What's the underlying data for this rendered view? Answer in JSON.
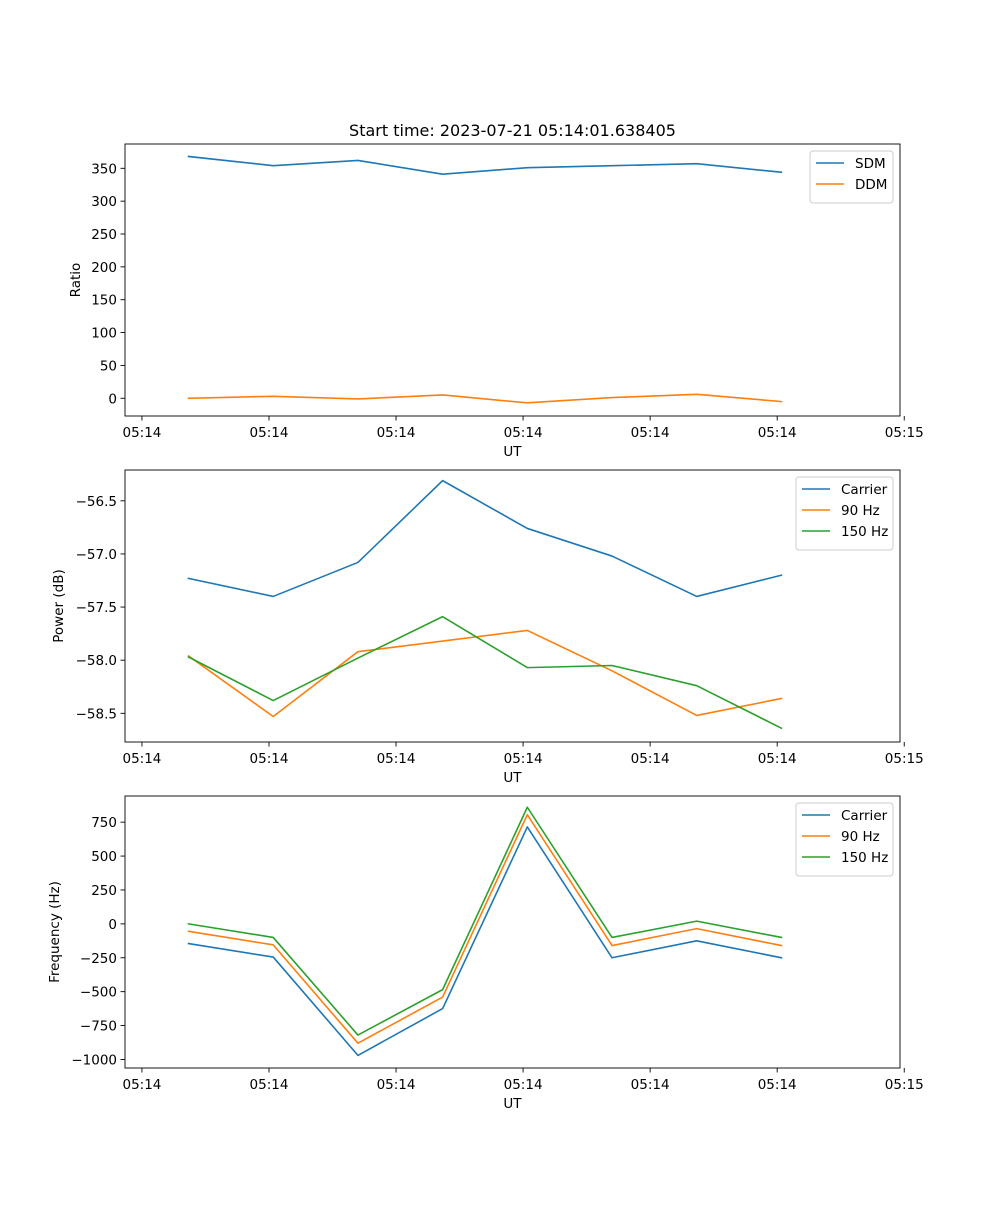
{
  "figure": {
    "title": "Start time: 2023-07-21 05:14:01.638405"
  },
  "chart_data": [
    {
      "type": "line",
      "title": "Start time: 2023-07-21 05:14:01.638405",
      "xlabel": "UT",
      "ylabel": "Ratio",
      "x": [
        0,
        1,
        2,
        3,
        4,
        5,
        6,
        7
      ],
      "xlim": [
        -0.75,
        8.4
      ],
      "x_ticks": [
        -0.55,
        0.95,
        2.45,
        3.95,
        5.45,
        6.95,
        8.45
      ],
      "x_tick_labels": [
        "05:14",
        "05:14",
        "05:14",
        "05:14",
        "05:14",
        "05:14",
        "05:15"
      ],
      "ylim": [
        -27,
        387
      ],
      "y_ticks": [
        0,
        50,
        100,
        150,
        200,
        250,
        300,
        350
      ],
      "y_tick_labels": [
        "0",
        "50",
        "100",
        "150",
        "200",
        "250",
        "300",
        "350"
      ],
      "legend_position": "top-right",
      "grid": false,
      "series": [
        {
          "name": "SDM",
          "color": "#1f77b4",
          "values": [
            368,
            354,
            362,
            341,
            351,
            354,
            357,
            344
          ]
        },
        {
          "name": "DDM",
          "color": "#ff7f0e",
          "values": [
            0,
            3,
            -1,
            5,
            -7,
            1,
            6,
            -5
          ]
        }
      ]
    },
    {
      "type": "line",
      "title": "",
      "xlabel": "UT",
      "ylabel": "Power (dB)",
      "x": [
        0,
        1,
        2,
        3,
        4,
        5,
        6,
        7
      ],
      "xlim": [
        -0.75,
        8.4
      ],
      "x_ticks": [
        -0.55,
        0.95,
        2.45,
        3.95,
        5.45,
        6.95,
        8.45
      ],
      "x_tick_labels": [
        "05:14",
        "05:14",
        "05:14",
        "05:14",
        "05:14",
        "05:14",
        "05:15"
      ],
      "ylim": [
        -58.77,
        -56.21
      ],
      "y_ticks": [
        -58.5,
        -58.0,
        -57.5,
        -57.0,
        -56.5
      ],
      "y_tick_labels": [
        "−58.5",
        "−58.0",
        "−57.5",
        "−57.0",
        "−56.5"
      ],
      "legend_position": "top-right",
      "grid": false,
      "series": [
        {
          "name": "Carrier",
          "color": "#1f77b4",
          "values": [
            -57.23,
            -57.4,
            -57.08,
            -56.31,
            -56.76,
            -57.02,
            -57.4,
            -57.2
          ]
        },
        {
          "name": "90 Hz",
          "color": "#ff7f0e",
          "values": [
            -57.96,
            -58.53,
            -57.92,
            -57.82,
            -57.72,
            -58.1,
            -58.52,
            -58.36
          ]
        },
        {
          "name": "150 Hz",
          "color": "#2ca02c",
          "values": [
            -57.97,
            -58.38,
            -57.98,
            -57.59,
            -58.07,
            -58.05,
            -58.24,
            -58.64
          ]
        }
      ]
    },
    {
      "type": "line",
      "title": "",
      "xlabel": "UT",
      "ylabel": "Frequency (Hz)",
      "x": [
        0,
        1,
        2,
        3,
        4,
        5,
        6,
        7
      ],
      "xlim": [
        -0.75,
        8.4
      ],
      "x_ticks": [
        -0.55,
        0.95,
        2.45,
        3.95,
        5.45,
        6.95,
        8.45
      ],
      "x_tick_labels": [
        "05:14",
        "05:14",
        "05:14",
        "05:14",
        "05:14",
        "05:14",
        "05:15"
      ],
      "ylim": [
        -1063,
        943
      ],
      "y_ticks": [
        -1000,
        -750,
        -500,
        -250,
        0,
        250,
        500,
        750
      ],
      "y_tick_labels": [
        "−1000",
        "−750",
        "−500",
        "−250",
        "0",
        "250",
        "500",
        "750"
      ],
      "legend_position": "top-right",
      "grid": false,
      "series": [
        {
          "name": "Carrier",
          "color": "#1f77b4",
          "values": [
            -145,
            -245,
            -970,
            -625,
            715,
            -250,
            -125,
            -250
          ]
        },
        {
          "name": "90 Hz",
          "color": "#ff7f0e",
          "values": [
            -55,
            -155,
            -880,
            -540,
            805,
            -160,
            -35,
            -160
          ]
        },
        {
          "name": "150 Hz",
          "color": "#2ca02c",
          "values": [
            0,
            -100,
            -820,
            -485,
            860,
            -100,
            20,
            -100
          ]
        }
      ]
    }
  ]
}
